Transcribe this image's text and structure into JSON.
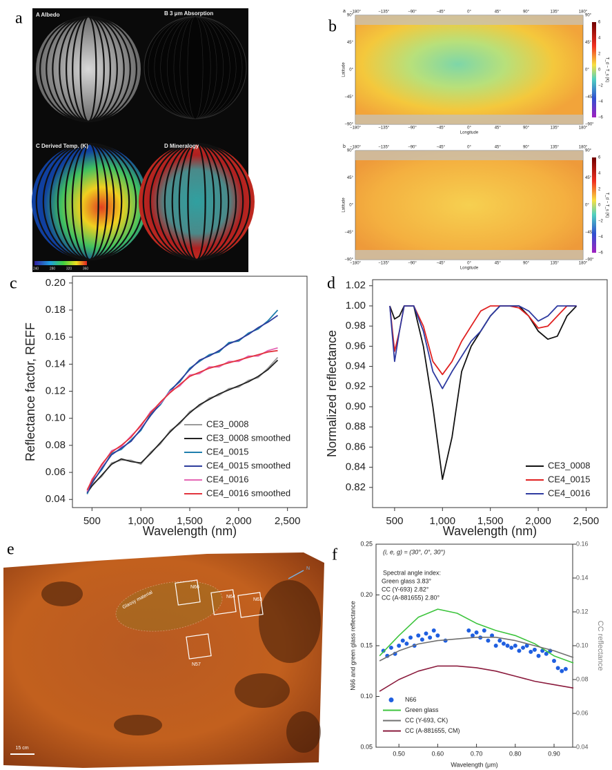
{
  "figure": {
    "panel_labels": [
      "a",
      "b",
      "c",
      "d",
      "e",
      "f"
    ],
    "a": {
      "titles": [
        "A  Albedo",
        "B  3 μm Absorption",
        "C  Derived Temp. (K)",
        "D  Mineralogy"
      ],
      "colorbar_ticks": [
        "240",
        "280",
        "320",
        "360"
      ]
    },
    "b": {
      "map_labels": [
        "a",
        "b"
      ],
      "lon_ticks": [
        "−180°",
        "−135°",
        "−90°",
        "−45°",
        "0°",
        "45°",
        "90°",
        "135°",
        "180°"
      ],
      "lat_ticks": [
        "90°",
        "45°",
        "0°",
        "−45°",
        "−90°"
      ],
      "x_label": "Longitude",
      "y_label": "Latitude",
      "colorbar_ticks": [
        "6",
        "4",
        "2",
        "0",
        "−2",
        "−4",
        "−6"
      ],
      "colorbar_label": "T_d − T_s (K)"
    },
    "e": {
      "region_labels": [
        "N66",
        "N64",
        "N63",
        "N57"
      ],
      "annotation": "Glassy material",
      "scale_bar": "15 cm",
      "north": "N"
    }
  },
  "chart_data": [
    {
      "type": "line",
      "x_label": "Wavelength (nm)",
      "y_label": "Reflectance factor, REFF",
      "x": [
        450,
        500,
        600,
        700,
        800,
        900,
        1000,
        1100,
        1200,
        1300,
        1400,
        1500,
        1600,
        1700,
        1800,
        1900,
        2000,
        2100,
        2200,
        2300,
        2400
      ],
      "series": [
        {
          "name": "CE3_0008",
          "color": "#9a9a9a",
          "values": [
            0.044,
            0.051,
            0.057,
            0.067,
            0.069,
            0.069,
            0.066,
            0.075,
            0.081,
            0.091,
            0.096,
            0.105,
            0.109,
            0.115,
            0.117,
            0.122,
            0.123,
            0.128,
            0.13,
            0.137,
            0.145
          ]
        },
        {
          "name": "CE3_0008 smoothed",
          "color": "#222222",
          "values": [
            0.045,
            0.05,
            0.058,
            0.066,
            0.07,
            0.068,
            0.067,
            0.074,
            0.082,
            0.09,
            0.097,
            0.104,
            0.11,
            0.114,
            0.118,
            0.121,
            0.124,
            0.127,
            0.131,
            0.136,
            0.143
          ]
        },
        {
          "name": "CE4_0015",
          "color": "#1f7ead",
          "values": [
            0.044,
            0.053,
            0.062,
            0.074,
            0.077,
            0.084,
            0.091,
            0.103,
            0.11,
            0.121,
            0.127,
            0.137,
            0.142,
            0.147,
            0.149,
            0.156,
            0.157,
            0.163,
            0.166,
            0.172,
            0.18
          ]
        },
        {
          "name": "CE4_0015 smoothed",
          "color": "#2c3c9c",
          "values": [
            0.045,
            0.052,
            0.063,
            0.073,
            0.078,
            0.083,
            0.092,
            0.102,
            0.111,
            0.12,
            0.128,
            0.136,
            0.143,
            0.146,
            0.15,
            0.155,
            0.158,
            0.162,
            0.167,
            0.171,
            0.176
          ]
        },
        {
          "name": "CE4_0016",
          "color": "#e466b4",
          "values": [
            0.046,
            0.055,
            0.065,
            0.076,
            0.079,
            0.087,
            0.094,
            0.105,
            0.111,
            0.12,
            0.124,
            0.132,
            0.133,
            0.138,
            0.138,
            0.142,
            0.142,
            0.146,
            0.146,
            0.15,
            0.152
          ]
        },
        {
          "name": "CE4_0016 smoothed",
          "color": "#e2333d",
          "values": [
            0.047,
            0.054,
            0.066,
            0.075,
            0.08,
            0.086,
            0.095,
            0.104,
            0.112,
            0.119,
            0.125,
            0.131,
            0.134,
            0.137,
            0.139,
            0.141,
            0.143,
            0.145,
            0.147,
            0.149,
            0.15
          ]
        }
      ],
      "xlim": [
        300,
        2700
      ],
      "xticks": [
        500,
        {
          "value": 1000,
          "label": "1,000"
        },
        {
          "value": 1500,
          "label": "1,500"
        },
        {
          "value": 2000,
          "label": "2,000"
        },
        {
          "value": 2500,
          "label": "2,500"
        }
      ],
      "ylim": [
        0.034,
        0.205
      ],
      "yticks": [
        0.04,
        0.06,
        0.08,
        {
          "value": 0.1,
          "label": "0.10"
        },
        0.12,
        0.14,
        0.16,
        0.18,
        {
          "value": 0.2,
          "label": "0.20"
        }
      ],
      "legend": "lower right"
    },
    {
      "type": "line",
      "x_label": "Wavelength (nm)",
      "y_label": "Normalized reflectance",
      "x": [
        450,
        500,
        550,
        600,
        650,
        700,
        800,
        900,
        1000,
        1100,
        1200,
        1300,
        1400,
        1500,
        1600,
        1700,
        1800,
        1900,
        2000,
        2100,
        2200,
        2300,
        2400
      ],
      "series": [
        {
          "name": "CE3_0008",
          "color": "#111111",
          "values": [
            1.0,
            0.987,
            0.99,
            1.0,
            1.0,
            1.0,
            0.96,
            0.9,
            0.828,
            0.87,
            0.935,
            0.96,
            0.975,
            0.99,
            1.0,
            1.0,
            1.0,
            0.99,
            0.975,
            0.967,
            0.97,
            0.99,
            1.0
          ]
        },
        {
          "name": "CE4_0015",
          "color": "#e02020",
          "values": [
            1.0,
            0.955,
            0.975,
            1.0,
            1.0,
            1.0,
            0.98,
            0.945,
            0.932,
            0.945,
            0.965,
            0.98,
            0.995,
            1.0,
            1.0,
            1.0,
            0.998,
            0.99,
            0.978,
            0.98,
            0.99,
            1.0,
            1.0
          ]
        },
        {
          "name": "CE4_0016",
          "color": "#2e3aa0",
          "values": [
            1.0,
            0.945,
            0.975,
            1.0,
            1.0,
            1.0,
            0.975,
            0.935,
            0.918,
            0.935,
            0.95,
            0.965,
            0.975,
            0.99,
            1.0,
            1.0,
            1.0,
            0.995,
            0.985,
            0.99,
            1.0,
            1.0,
            1.0
          ]
        }
      ],
      "xlim": [
        270,
        2720
      ],
      "xticks": [
        500,
        {
          "value": 1000,
          "label": "1,000"
        },
        {
          "value": 1500,
          "label": "1,500"
        },
        {
          "value": 2000,
          "label": "2,000"
        },
        {
          "value": 2500,
          "label": "2,500"
        }
      ],
      "ylim": [
        0.8,
        1.026
      ],
      "yticks": [
        0.82,
        0.84,
        0.86,
        0.88,
        {
          "value": 0.9,
          "label": "0.90"
        },
        0.92,
        0.94,
        0.96,
        0.98,
        {
          "value": 1.0,
          "label": "1.00"
        },
        1.02
      ],
      "legend": "lower right"
    },
    {
      "type": "line",
      "x_label": "Wavelength (μm)",
      "y_label": "N66 and green glass reflectance",
      "y2_label": "CC reflectance",
      "annotations": [
        "(i, e, g) = (30°, 0°, 30°)",
        "Spectral angle index:",
        "Green glass 3.83°",
        "CC (Y-693) 2.82°",
        "CC (A-881655) 2.80°"
      ],
      "x": [
        0.45,
        0.5,
        0.55,
        0.6,
        0.65,
        0.7,
        0.75,
        0.8,
        0.85,
        0.9,
        0.95
      ],
      "series": [
        {
          "name": "N66",
          "type": "scatter",
          "color": "#1f5fe0",
          "x": [
            0.46,
            0.47,
            0.48,
            0.49,
            0.5,
            0.51,
            0.52,
            0.53,
            0.54,
            0.55,
            0.56,
            0.57,
            0.58,
            0.59,
            0.6,
            0.62,
            0.68,
            0.69,
            0.7,
            0.71,
            0.72,
            0.73,
            0.74,
            0.75,
            0.76,
            0.77,
            0.78,
            0.79,
            0.8,
            0.81,
            0.82,
            0.83,
            0.84,
            0.85,
            0.86,
            0.87,
            0.88,
            0.89,
            0.9,
            0.91,
            0.92,
            0.93
          ],
          "values": [
            0.145,
            0.14,
            0.148,
            0.142,
            0.15,
            0.155,
            0.152,
            0.158,
            0.15,
            0.16,
            0.156,
            0.162,
            0.158,
            0.165,
            0.16,
            0.155,
            0.165,
            0.16,
            0.163,
            0.158,
            0.165,
            0.155,
            0.16,
            0.15,
            0.155,
            0.152,
            0.15,
            0.148,
            0.15,
            0.145,
            0.148,
            0.15,
            0.144,
            0.146,
            0.14,
            0.145,
            0.142,
            0.145,
            0.135,
            0.128,
            0.125,
            0.127
          ]
        },
        {
          "name": "Green glass",
          "color": "#3cc43c",
          "values": [
            0.14,
            0.16,
            0.178,
            0.186,
            0.182,
            0.172,
            0.165,
            0.16,
            0.152,
            0.14,
            0.133
          ]
        },
        {
          "name": "CC (Y-693, CK)",
          "color": "#707070",
          "axis": "y2",
          "values": [
            0.091,
            0.097,
            0.101,
            0.103,
            0.104,
            0.105,
            0.105,
            0.103,
            0.1,
            0.097,
            0.093
          ]
        },
        {
          "name": "CC (A-881655, CM)",
          "color": "#8a1a3c",
          "axis": "y2",
          "values": [
            0.073,
            0.08,
            0.085,
            0.088,
            0.088,
            0.087,
            0.085,
            0.082,
            0.079,
            0.077,
            0.075
          ]
        }
      ],
      "xlim": [
        0.441,
        0.948
      ],
      "xticks": [
        {
          "value": 0.5,
          "label": "0.50"
        },
        {
          "value": 0.6,
          "label": "0.60"
        },
        {
          "value": 0.7,
          "label": "0.70"
        },
        {
          "value": 0.8,
          "label": "0.80"
        },
        {
          "value": 0.9,
          "label": "0.90"
        }
      ],
      "ylim": [
        0.05,
        0.25
      ],
      "yticks": [
        0.05,
        {
          "value": 0.1,
          "label": "0.10"
        },
        0.15,
        {
          "value": 0.2,
          "label": "0.20"
        },
        0.25
      ],
      "y2lim": [
        0.04,
        0.16
      ],
      "y2ticks": [
        0.04,
        0.06,
        0.08,
        {
          "value": 0.1,
          "label": "0.10"
        },
        0.12,
        0.14,
        0.16
      ],
      "legend": "lower left"
    }
  ]
}
